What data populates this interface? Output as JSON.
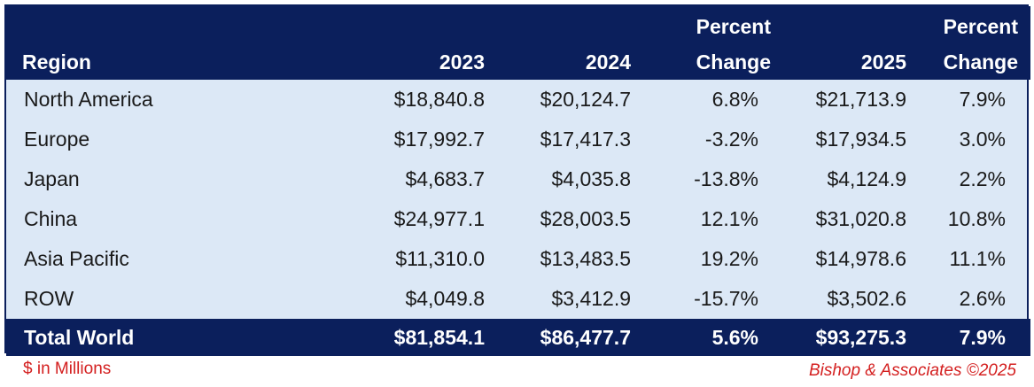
{
  "chart_data": {
    "type": "table",
    "columns": [
      "Region",
      "2023",
      "2024",
      "Percent Change",
      "2025",
      "Percent Change"
    ],
    "header_top": [
      "",
      "",
      "",
      "Percent",
      "",
      "Percent"
    ],
    "header_bottom": [
      "Region",
      "2023",
      "2024",
      "Change",
      "2025",
      "Change"
    ],
    "rows": [
      [
        "North America",
        "$18,840.8",
        "$20,124.7",
        "6.8%",
        "$21,713.9",
        "7.9%"
      ],
      [
        "Europe",
        "$17,992.7",
        "$17,417.3",
        "-3.2%",
        "$17,934.5",
        "3.0%"
      ],
      [
        "Japan",
        "$4,683.7",
        "$4,035.8",
        "-13.8%",
        "$4,124.9",
        "2.2%"
      ],
      [
        "China",
        "$24,977.1",
        "$28,003.5",
        "12.1%",
        "$31,020.8",
        "10.8%"
      ],
      [
        "Asia Pacific",
        "$11,310.0",
        "$13,483.5",
        "19.2%",
        "$14,978.6",
        "11.1%"
      ],
      [
        "ROW",
        "$4,049.8",
        "$3,412.9",
        "-15.7%",
        "$3,502.6",
        "2.6%"
      ]
    ],
    "total": [
      "Total World",
      "$81,854.1",
      "$86,477.7",
      "5.6%",
      "$93,275.3",
      "7.9%"
    ]
  },
  "footnote_units": "$ in Millions",
  "footnote_source": "Bishop & Associates ©2025",
  "colors": {
    "header_bg": "#0b1f5c",
    "body_bg": "#dce8f6",
    "footnote": "#d42020"
  }
}
